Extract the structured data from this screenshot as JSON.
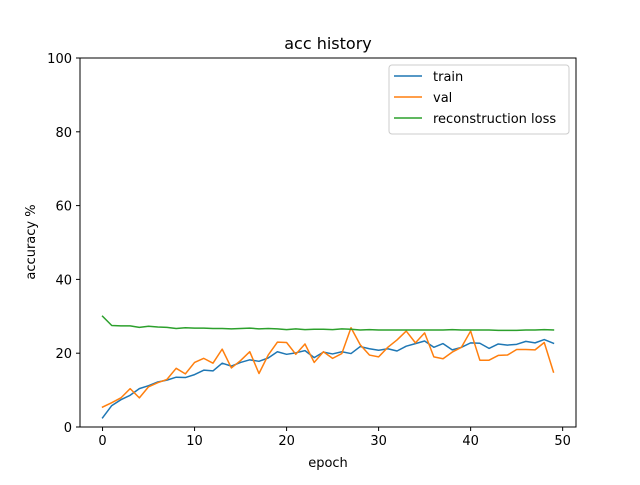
{
  "chart_data": {
    "type": "line",
    "title": "acc history",
    "xlabel": "epoch",
    "ylabel": "accuracy %",
    "xlim": [
      -2.45,
      51.45
    ],
    "ylim": [
      0,
      100
    ],
    "xticks": [
      0,
      10,
      20,
      30,
      40,
      50
    ],
    "yticks": [
      0,
      20,
      40,
      60,
      80,
      100
    ],
    "grid": false,
    "legend": {
      "placement": "top-right"
    },
    "x": [
      0,
      1,
      2,
      3,
      4,
      5,
      6,
      7,
      8,
      9,
      10,
      11,
      12,
      13,
      14,
      15,
      16,
      17,
      18,
      19,
      20,
      21,
      22,
      23,
      24,
      25,
      26,
      27,
      28,
      29,
      30,
      31,
      32,
      33,
      34,
      35,
      36,
      37,
      38,
      39,
      40,
      41,
      42,
      43,
      44,
      45,
      46,
      47,
      48,
      49
    ],
    "series": [
      {
        "name": "train",
        "color": "#1f77b4",
        "values": [
          2.5,
          5.8,
          7.4,
          8.6,
          10.4,
          11.2,
          12.2,
          12.7,
          13.5,
          13.4,
          14.2,
          15.4,
          15.2,
          17.3,
          16.5,
          17.5,
          18.2,
          17.8,
          18.7,
          20.4,
          19.7,
          20.1,
          20.7,
          18.8,
          20.3,
          19.8,
          20.4,
          19.9,
          21.8,
          21.2,
          20.8,
          21.2,
          20.6,
          21.9,
          22.6,
          23.3,
          21.6,
          22.6,
          20.9,
          21.6,
          22.8,
          22.7,
          21.3,
          22.5,
          22.2,
          22.4,
          23.2,
          22.8,
          23.7,
          22.7
        ]
      },
      {
        "name": "val",
        "color": "#ff7f0e",
        "values": [
          5.4,
          6.6,
          7.9,
          10.4,
          7.9,
          10.9,
          12.0,
          12.9,
          15.9,
          14.4,
          17.5,
          18.6,
          17.3,
          21.1,
          16.0,
          18.0,
          20.4,
          14.5,
          19.5,
          23.0,
          22.9,
          19.7,
          22.5,
          17.5,
          20.4,
          18.6,
          19.9,
          26.9,
          22.3,
          19.5,
          19.0,
          21.6,
          23.6,
          26.0,
          22.8,
          25.5,
          19.0,
          18.5,
          20.3,
          21.6,
          26.0,
          18.1,
          18.1,
          19.4,
          19.5,
          21.0,
          21.0,
          20.9,
          22.9,
          14.9
        ]
      },
      {
        "name": "reconstruction loss",
        "color": "#2ca02c",
        "values": [
          30.0,
          27.5,
          27.4,
          27.4,
          27.0,
          27.3,
          27.1,
          27.0,
          26.7,
          26.9,
          26.8,
          26.8,
          26.7,
          26.7,
          26.6,
          26.7,
          26.8,
          26.6,
          26.7,
          26.6,
          26.4,
          26.6,
          26.4,
          26.5,
          26.5,
          26.4,
          26.6,
          26.5,
          26.3,
          26.4,
          26.3,
          26.3,
          26.3,
          26.3,
          26.3,
          26.3,
          26.3,
          26.3,
          26.4,
          26.3,
          26.3,
          26.3,
          26.3,
          26.2,
          26.2,
          26.2,
          26.3,
          26.3,
          26.4,
          26.3
        ]
      }
    ]
  }
}
